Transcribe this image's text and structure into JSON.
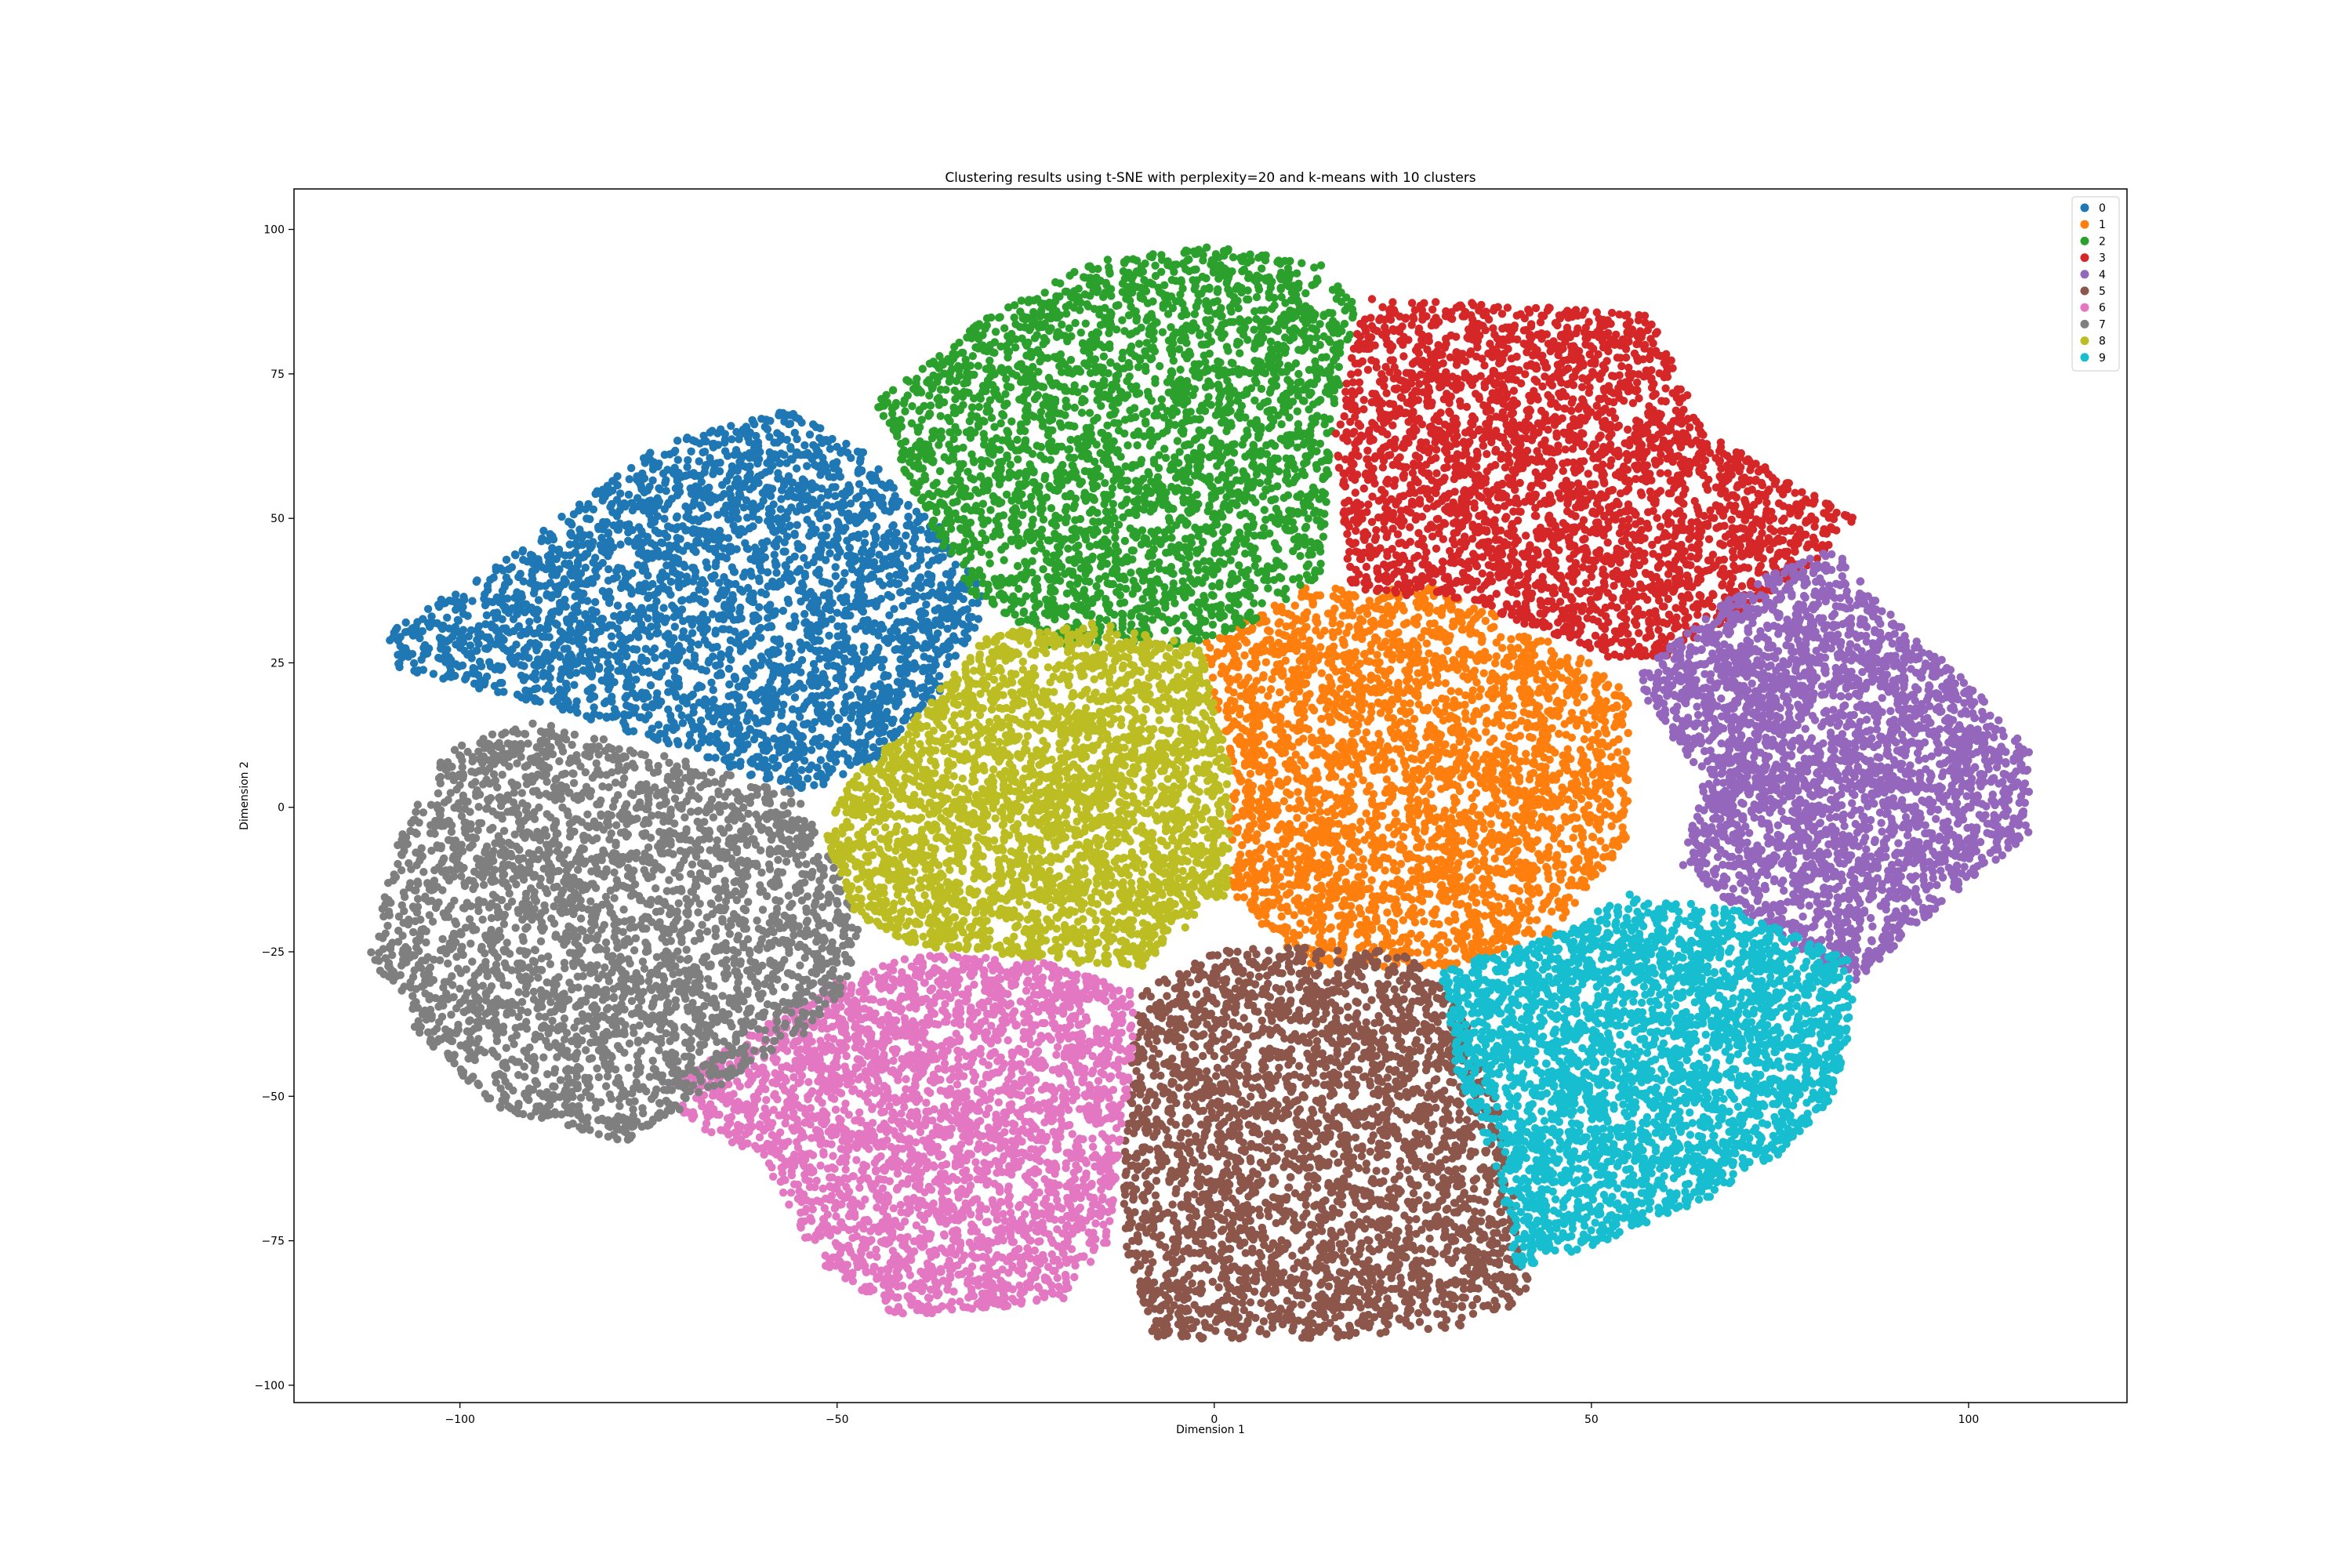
{
  "chart_data": {
    "type": "scatter",
    "title": "Clustering results using t-SNE with perplexity=20 and k-means with 10 clusters",
    "xlabel": "Dimension 1",
    "ylabel": "Dimension 2",
    "xlim": [
      -122,
      121
    ],
    "ylim": [
      -103,
      107
    ],
    "x_ticks": [
      -100,
      -50,
      0,
      50,
      100
    ],
    "x_tick_labels": [
      "−100",
      "−50",
      "0",
      "50",
      "100"
    ],
    "y_ticks": [
      -100,
      -75,
      -50,
      -25,
      0,
      25,
      50,
      75,
      100
    ],
    "y_tick_labels": [
      "−100",
      "−75",
      "−50",
      "−25",
      "0",
      "25",
      "50",
      "75",
      "100"
    ],
    "grid": false,
    "legend_position": "top-right",
    "series": [
      {
        "name": "0",
        "color": "#1f77b4",
        "region": [
          [
            -110,
            30
          ],
          [
            -95,
            42
          ],
          [
            -75,
            62
          ],
          [
            -57,
            69
          ],
          [
            -47,
            62
          ],
          [
            -36,
            48
          ],
          [
            -30,
            36
          ],
          [
            -35,
            22
          ],
          [
            -45,
            8
          ],
          [
            -55,
            2
          ],
          [
            -70,
            10
          ],
          [
            -90,
            18
          ],
          [
            -108,
            24
          ]
        ],
        "approx_points": 3000
      },
      {
        "name": "1",
        "color": "#ff7f0e",
        "region": [
          [
            -2,
            28
          ],
          [
            12,
            38
          ],
          [
            30,
            38
          ],
          [
            50,
            25
          ],
          [
            55,
            20
          ],
          [
            55,
            -5
          ],
          [
            45,
            -22
          ],
          [
            30,
            -28
          ],
          [
            12,
            -27
          ],
          [
            2,
            -15
          ],
          [
            2,
            10
          ]
        ],
        "approx_points": 3000
      },
      {
        "name": "2",
        "color": "#2ca02c",
        "region": [
          [
            -45,
            70
          ],
          [
            -30,
            85
          ],
          [
            -15,
            95
          ],
          [
            0,
            97
          ],
          [
            14,
            94
          ],
          [
            19,
            87
          ],
          [
            16,
            68
          ],
          [
            14,
            40
          ],
          [
            5,
            32
          ],
          [
            -4,
            28
          ],
          [
            -22,
            28
          ],
          [
            -33,
            38
          ],
          [
            -40,
            55
          ]
        ],
        "approx_points": 3000
      },
      {
        "name": "3",
        "color": "#d62728",
        "region": [
          [
            20,
            88
          ],
          [
            40,
            87
          ],
          [
            58,
            85
          ],
          [
            65,
            65
          ],
          [
            78,
            55
          ],
          [
            85,
            50
          ],
          [
            78,
            40
          ],
          [
            60,
            26
          ],
          [
            52,
            26
          ],
          [
            35,
            35
          ],
          [
            18,
            38
          ],
          [
            16,
            65
          ]
        ],
        "approx_points": 3000
      },
      {
        "name": "4",
        "color": "#9467bd",
        "region": [
          [
            55,
            22
          ],
          [
            70,
            38
          ],
          [
            82,
            45
          ],
          [
            92,
            30
          ],
          [
            100,
            22
          ],
          [
            108,
            10
          ],
          [
            108,
            -5
          ],
          [
            98,
            -15
          ],
          [
            92,
            -22
          ],
          [
            85,
            -30
          ],
          [
            72,
            -20
          ],
          [
            62,
            -10
          ],
          [
            65,
            5
          ]
        ],
        "approx_points": 3000
      },
      {
        "name": "5",
        "color": "#8c564b",
        "region": [
          [
            -10,
            -32
          ],
          [
            0,
            -25
          ],
          [
            10,
            -24
          ],
          [
            25,
            -25
          ],
          [
            32,
            -32
          ],
          [
            38,
            -52
          ],
          [
            40,
            -70
          ],
          [
            42,
            -85
          ],
          [
            32,
            -90
          ],
          [
            20,
            -92
          ],
          [
            5,
            -92
          ],
          [
            -8,
            -92
          ],
          [
            -12,
            -75
          ],
          [
            -12,
            -55
          ]
        ],
        "approx_points": 3000
      },
      {
        "name": "6",
        "color": "#e377c2",
        "region": [
          [
            -60,
            -38
          ],
          [
            -50,
            -30
          ],
          [
            -38,
            -25
          ],
          [
            -22,
            -27
          ],
          [
            -10,
            -32
          ],
          [
            -12,
            -55
          ],
          [
            -14,
            -75
          ],
          [
            -20,
            -85
          ],
          [
            -30,
            -87
          ],
          [
            -42,
            -88
          ],
          [
            -53,
            -78
          ],
          [
            -60,
            -60
          ],
          [
            -70,
            -55
          ],
          [
            -72,
            -48
          ]
        ],
        "approx_points": 3000
      },
      {
        "name": "7",
        "color": "#7f7f7f",
        "region": [
          [
            -108,
            -5
          ],
          [
            -102,
            10
          ],
          [
            -90,
            15
          ],
          [
            -70,
            8
          ],
          [
            -55,
            2
          ],
          [
            -50,
            -10
          ],
          [
            -47,
            -20
          ],
          [
            -48,
            -30
          ],
          [
            -55,
            -40
          ],
          [
            -68,
            -50
          ],
          [
            -78,
            -58
          ],
          [
            -95,
            -52
          ],
          [
            -105,
            -40
          ],
          [
            -112,
            -26
          ]
        ],
        "approx_points": 3000
      },
      {
        "name": "8",
        "color": "#bcbd22",
        "region": [
          [
            -30,
            30
          ],
          [
            -15,
            32
          ],
          [
            -2,
            28
          ],
          [
            2,
            10
          ],
          [
            2,
            -15
          ],
          [
            -10,
            -28
          ],
          [
            -25,
            -26
          ],
          [
            -40,
            -24
          ],
          [
            -48,
            -18
          ],
          [
            -52,
            -5
          ],
          [
            -48,
            5
          ],
          [
            -40,
            15
          ]
        ],
        "approx_points": 3000
      },
      {
        "name": "9",
        "color": "#17becf",
        "region": [
          [
            30,
            -28
          ],
          [
            45,
            -22
          ],
          [
            55,
            -15
          ],
          [
            70,
            -18
          ],
          [
            84,
            -26
          ],
          [
            85,
            -35
          ],
          [
            82,
            -50
          ],
          [
            75,
            -60
          ],
          [
            65,
            -68
          ],
          [
            52,
            -75
          ],
          [
            40,
            -80
          ],
          [
            38,
            -65
          ],
          [
            32,
            -45
          ]
        ],
        "approx_points": 3000
      }
    ]
  }
}
